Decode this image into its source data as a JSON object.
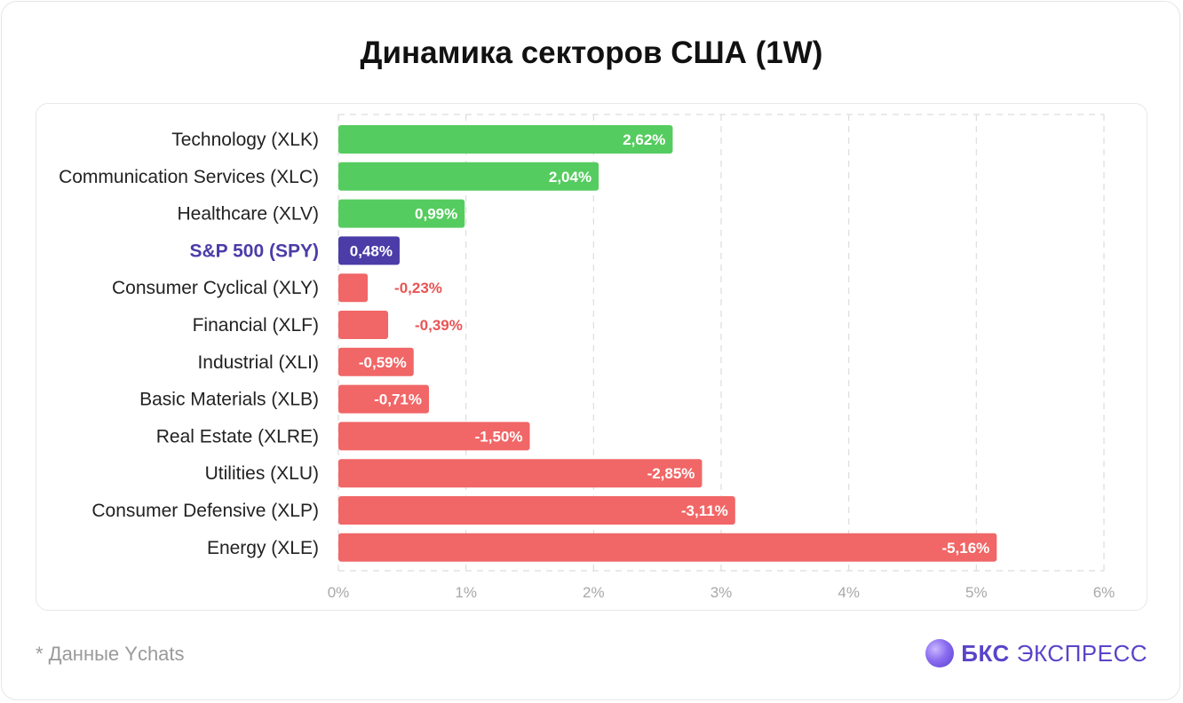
{
  "title": "Динамика секторов США (1W)",
  "footnote": "* Данные Ychats",
  "brand": {
    "name_bold": "БКС",
    "name_light": "ЭКСПРЕСС",
    "logo_icon": "bks-orb-icon"
  },
  "colors": {
    "positive": "#55cc5f",
    "negative": "#f16666",
    "benchmark": "#4b3ca8",
    "benchmark_label": "#4b3ca8",
    "negative_label_outside": "#e85454",
    "grid": "#dddddd",
    "tick": "#a8a8a8",
    "category": "#222222"
  },
  "chart_data": {
    "type": "bar",
    "orientation": "horizontal",
    "title": "Динамика секторов США (1W)",
    "xlabel": "",
    "ylabel": "",
    "xlim": [
      0,
      6
    ],
    "x_ticks": [
      "0%",
      "1%",
      "2%",
      "3%",
      "4%",
      "5%",
      "6%"
    ],
    "grid": "vertical-dashed",
    "bar_length": "absolute value",
    "categories": [
      "Technology (XLK)",
      "Communication Services (XLC)",
      "Healthcare (XLV)",
      "S&P 500 (SPY)",
      "Consumer Cyclical (XLY)",
      "Financial (XLF)",
      "Industrial (XLI)",
      "Basic Materials (XLB)",
      "Real Estate (XLRE)",
      "Utilities (XLU)",
      "Consumer Defensive (XLP)",
      "Energy (XLE)"
    ],
    "values": [
      2.62,
      2.04,
      0.99,
      0.48,
      -0.23,
      -0.39,
      -0.59,
      -0.71,
      -1.5,
      -2.85,
      -3.11,
      -5.16
    ],
    "value_labels": [
      "2,62%",
      "2,04%",
      "0,99%",
      "0,48%",
      "-0,23%",
      "-0,39%",
      "-0,59%",
      "-0,71%",
      "-1,50%",
      "-2,85%",
      "-3,11%",
      "-5,16%"
    ],
    "highlight": "S&P 500 (SPY)"
  }
}
